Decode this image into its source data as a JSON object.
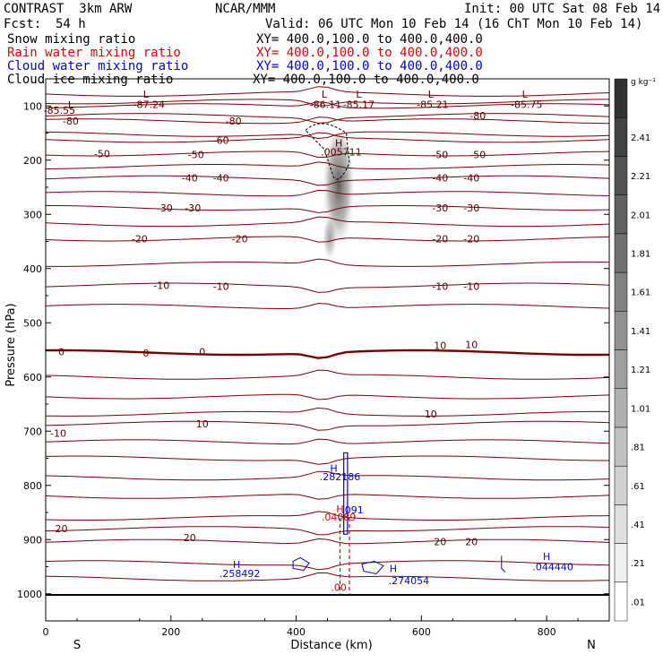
{
  "header": {
    "title": "CONTRAST  3km ARW",
    "org": "NCAR/MMM",
    "init": "Init: 00 UTC Sat 08 Feb 14",
    "fcst_label": "Fcst:",
    "fcst_value": "54 h",
    "valid": "Valid: 06 UTC Mon 10 Feb 14 (16 ChT Mon 10 Feb 14)",
    "fields": [
      {
        "name": "Snow mixing ratio",
        "color": "#000000",
        "xy": "XY= 400.0,100.0 to 400.0,400.0"
      },
      {
        "name": "Rain water mixing ratio",
        "color": "#e00000",
        "xy": "XY= 400.0,100.0 to 400.0,400.0"
      },
      {
        "name": "Cloud water mixing ratio",
        "color": "#0000d0",
        "xy": "XY= 400.0,100.0 to 400.0,400.0"
      },
      {
        "name": "Cloud ice mixing ratio",
        "color": "#000000",
        "xy": "XY= 400.0,100.0 to 400.0,400.0"
      }
    ]
  },
  "chart_data": {
    "type": "cross-section",
    "xlabel": "Distance (km)",
    "ylabel": "Pressure (hPa)",
    "xlim": [
      0,
      900
    ],
    "ylim": [
      1050,
      50
    ],
    "xticks": [
      0,
      200,
      400,
      600,
      800
    ],
    "yticks": [
      100,
      200,
      300,
      400,
      500,
      600,
      700,
      800,
      900,
      1000
    ],
    "x_endpoints": {
      "left": "S",
      "right": "N"
    },
    "colorbar": {
      "units": "g kg⁻¹",
      "levels": [
        ".01",
        ".21",
        ".41",
        ".61",
        ".81",
        "1.01",
        "1.21",
        "1.41",
        "1.61",
        "1.81",
        "2.01",
        "2.21",
        "2.41"
      ]
    },
    "temperature_contours": {
      "color": "#7a0000",
      "zero_color": "#6a0000",
      "labels": [
        {
          "t": "-80",
          "x": 40,
          "p": 128
        },
        {
          "t": "-80",
          "x": 300,
          "p": 128
        },
        {
          "t": "-80",
          "x": 690,
          "p": 118
        },
        {
          "t": "-60",
          "x": 280,
          "p": 163
        },
        {
          "t": "-50",
          "x": 90,
          "p": 188
        },
        {
          "t": "-50",
          "x": 240,
          "p": 190
        },
        {
          "t": "-50",
          "x": 630,
          "p": 190
        },
        {
          "t": "-50",
          "x": 690,
          "p": 190
        },
        {
          "t": "-40",
          "x": 230,
          "p": 233
        },
        {
          "t": "-40",
          "x": 280,
          "p": 233
        },
        {
          "t": "-40",
          "x": 630,
          "p": 233
        },
        {
          "t": "-40",
          "x": 680,
          "p": 233
        },
        {
          "t": "-30",
          "x": 190,
          "p": 288
        },
        {
          "t": "-30",
          "x": 235,
          "p": 288
        },
        {
          "t": "-30",
          "x": 630,
          "p": 288
        },
        {
          "t": "-30",
          "x": 680,
          "p": 288
        },
        {
          "t": "-20",
          "x": 150,
          "p": 345
        },
        {
          "t": "-20",
          "x": 310,
          "p": 345
        },
        {
          "t": "-20",
          "x": 630,
          "p": 345
        },
        {
          "t": "-20",
          "x": 680,
          "p": 345
        },
        {
          "t": "-10",
          "x": 185,
          "p": 431
        },
        {
          "t": "-10",
          "x": 280,
          "p": 433
        },
        {
          "t": "-10",
          "x": 630,
          "p": 433
        },
        {
          "t": "-10",
          "x": 680,
          "p": 433
        },
        {
          "t": "0",
          "x": 25,
          "p": 553
        },
        {
          "t": "0",
          "x": 160,
          "p": 556
        },
        {
          "t": "0",
          "x": 250,
          "p": 553
        },
        {
          "t": "10",
          "x": 630,
          "p": 542
        },
        {
          "t": "10",
          "x": 680,
          "p": 540
        },
        {
          "t": "10",
          "x": 615,
          "p": 668
        },
        {
          "t": "10",
          "x": 250,
          "p": 686
        },
        {
          "t": "-10",
          "x": 20,
          "p": 704
        },
        {
          "t": "20",
          "x": 25,
          "p": 880
        },
        {
          "t": "20",
          "x": 230,
          "p": 896
        },
        {
          "t": "20",
          "x": 630,
          "p": 904
        },
        {
          "t": "20",
          "x": 680,
          "p": 904
        }
      ]
    },
    "extrema": [
      {
        "type": "L",
        "x": 160,
        "p": 78,
        "value": "-87.24",
        "vx": 165,
        "vp": 97
      },
      {
        "type": "L",
        "x": 40,
        "p": 98,
        "value": "-85.55",
        "vx": 22,
        "vp": 108
      },
      {
        "type": "L",
        "x": 445,
        "p": 78,
        "value": "-86.11",
        "vx": 447,
        "vp": 97
      },
      {
        "type": "L",
        "x": 500,
        "p": 78,
        "value": "-85.17",
        "vx": 500,
        "vp": 97
      },
      {
        "type": "L",
        "x": 615,
        "p": 78,
        "value": "-85.21",
        "vx": 618,
        "vp": 97
      },
      {
        "type": "L",
        "x": 765,
        "p": 78,
        "value": "-85.75",
        "vx": 768,
        "vp": 97
      },
      {
        "type": "H",
        "x": 468,
        "p": 168,
        "value": ".005711",
        "vx": 472,
        "vp": 185
      },
      {
        "type": "H",
        "x": 460,
        "p": 768,
        "value": ".282186",
        "vx": 470,
        "vp": 784,
        "color": "#0000d0"
      },
      {
        "type": "H",
        "x": 470,
        "p": 843,
        "value": ".04089",
        "vx": 468,
        "vp": 858,
        "color": "#e00000"
      },
      {
        "type": "H",
        "x": 305,
        "p": 946,
        "value": ".258492",
        "vx": 310,
        "vp": 962,
        "color": "#0000d0"
      },
      {
        "type": "H",
        "x": 555,
        "p": 953,
        "value": ".274054",
        "vx": 580,
        "vp": 976,
        "color": "#0000d0"
      },
      {
        "type": "H",
        "x": 800,
        "p": 931,
        "value": ".044440",
        "vx": 810,
        "vp": 950,
        "color": "#0000d0"
      }
    ],
    "other_labels": [
      {
        "t": ".091",
        "x": 490,
        "p": 845,
        "color": "#0000d0"
      },
      {
        "t": ".00",
        "x": 468,
        "p": 988,
        "color": "#e00000"
      }
    ]
  }
}
